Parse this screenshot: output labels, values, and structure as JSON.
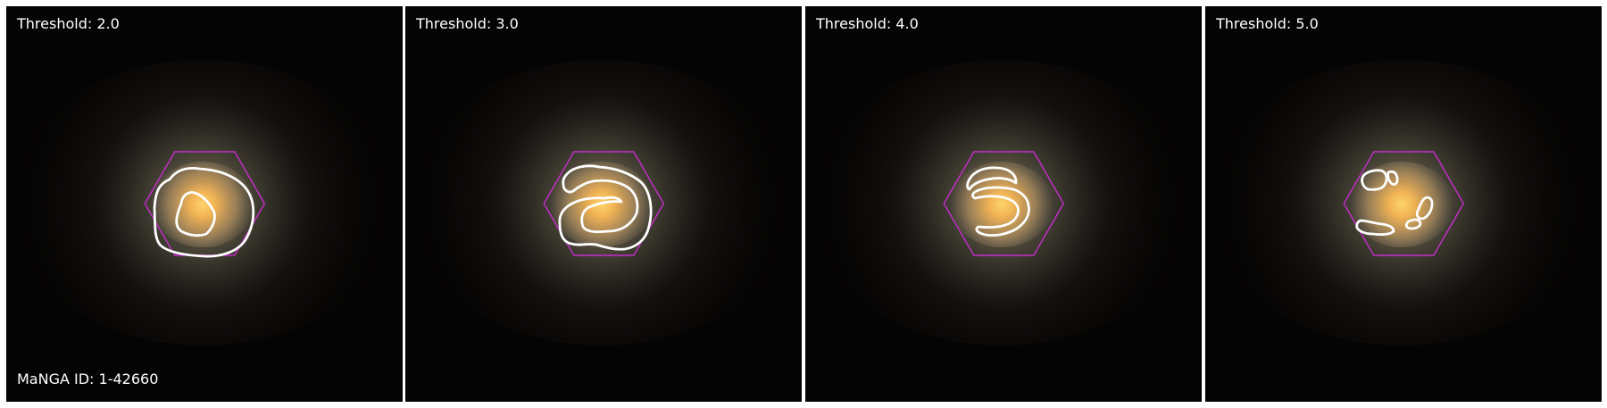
{
  "figure": {
    "manga_id_label": "MaNGA ID: 1-42660",
    "colors": {
      "background": "#050404",
      "hexagon": "#c42fc9",
      "contour": "#ffffff",
      "galaxy_core": "#f7c25d",
      "galaxy_halo": "#79735e"
    },
    "panels": [
      {
        "title": "Threshold: 2.0",
        "threshold": 2.0
      },
      {
        "title": "Threshold: 3.0",
        "threshold": 3.0
      },
      {
        "title": "Threshold: 4.0",
        "threshold": 4.0
      },
      {
        "title": "Threshold: 5.0",
        "threshold": 5.0
      }
    ]
  }
}
